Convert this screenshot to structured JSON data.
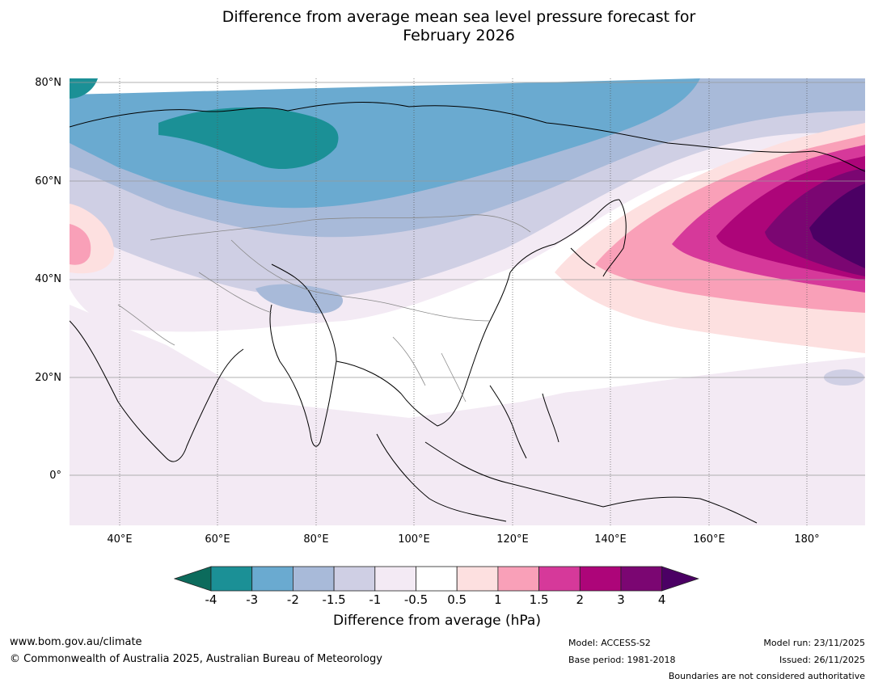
{
  "title_line1": "Difference from average mean sea level pressure forecast for",
  "title_line2": "February 2026",
  "lat_labels": [
    "80°N",
    "60°N",
    "40°N",
    "20°N",
    "0°"
  ],
  "lon_labels": [
    "40°E",
    "60°E",
    "80°E",
    "100°E",
    "120°E",
    "140°E",
    "160°E",
    "180°"
  ],
  "colorbar": {
    "ticks": [
      "-4",
      "-3",
      "-2",
      "-1.5",
      "-1",
      "-0.5",
      "0.5",
      "1",
      "1.5",
      "2",
      "3",
      "4"
    ],
    "colors": [
      "#0c6b5c",
      "#1b9096",
      "#6aaad0",
      "#a8bad9",
      "#cfcfe4",
      "#f3eaf4",
      "#ffffff",
      "#fde0e0",
      "#f9a0b8",
      "#d6399a",
      "#ad0579",
      "#7b0672",
      "#4b0064"
    ],
    "label": "Difference from average (hPa)"
  },
  "footer": {
    "url": "www.bom.gov.au/climate",
    "copyright": "© Commonwealth of Australia 2025, Australian Bureau of Meteorology",
    "model": "Model: ACCESS-S2",
    "base_period": "Base period: 1981-2018",
    "model_run": "Model run: 23/11/2025",
    "issued": "Issued: 26/11/2025",
    "disclaimer": "Boundaries are not considered authoritative"
  }
}
